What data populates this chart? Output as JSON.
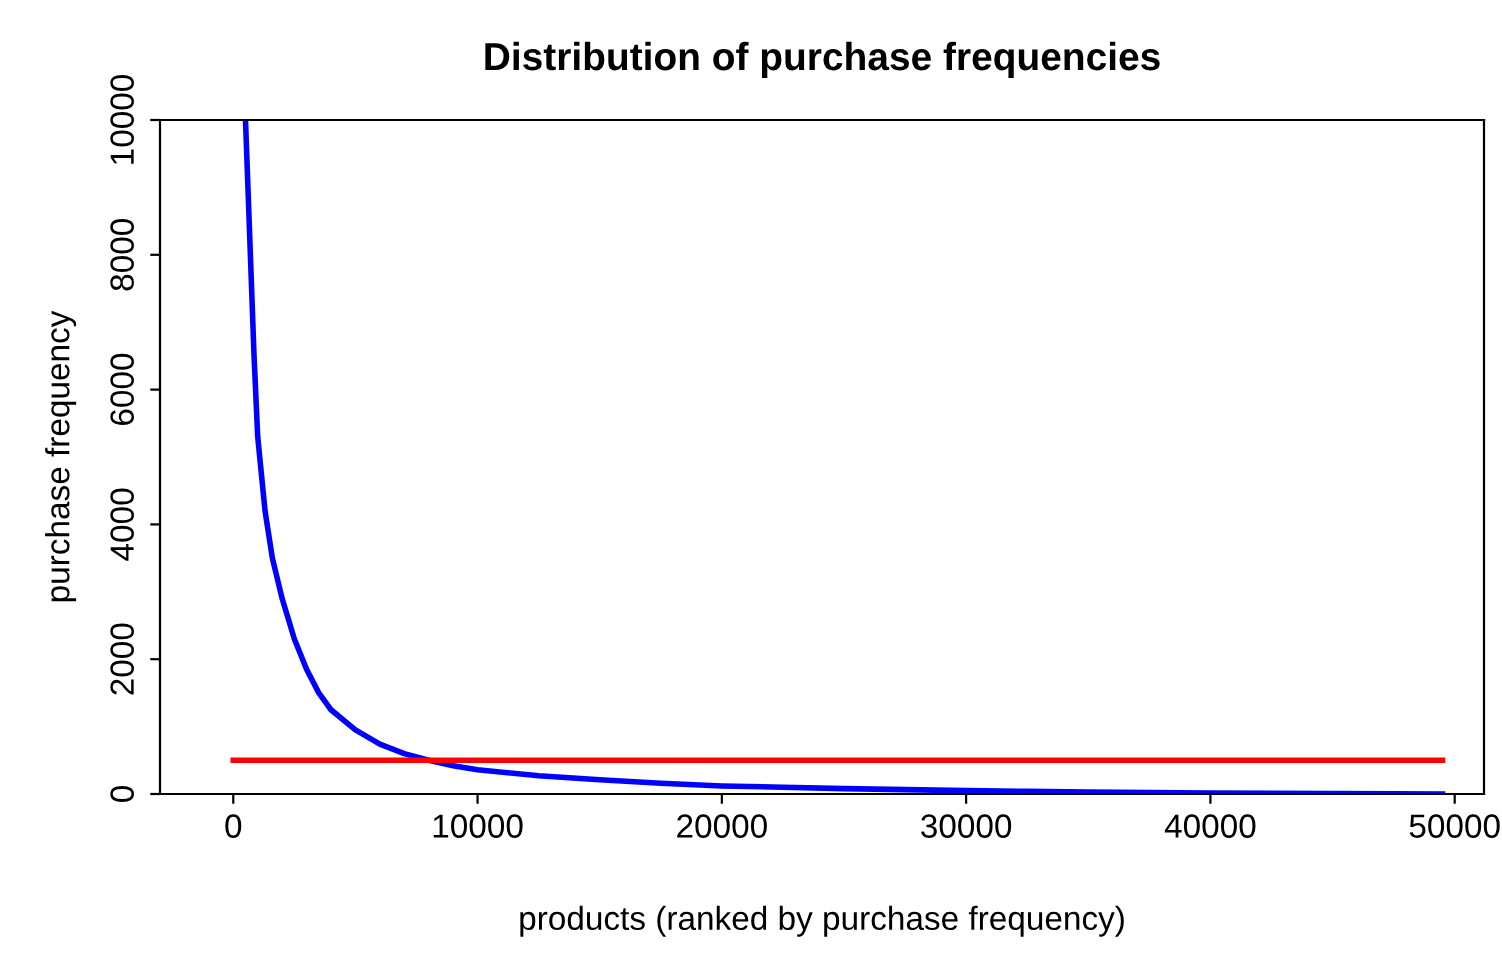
{
  "chart_data": {
    "type": "line",
    "title": "Distribution of purchase frequencies",
    "xlabel": "products (ranked by purchase frequency)",
    "ylabel": "purchase frequency",
    "series": [
      {
        "color": "#0000ff",
        "x": [
          500,
          600,
          700,
          850,
          1000,
          1300,
          1600,
          2000,
          2500,
          3000,
          3500,
          4000,
          5000,
          6000,
          7000,
          8000,
          9000,
          10000,
          12500,
          15000,
          17500,
          20000,
          22500,
          25000,
          27500,
          30000,
          32500,
          35000,
          37500,
          40000,
          42500,
          45000,
          47500,
          49500
        ],
        "values": [
          10000,
          9000,
          8000,
          6500,
          5300,
          4200,
          3500,
          2900,
          2300,
          1850,
          1500,
          1250,
          950,
          740,
          600,
          500,
          420,
          360,
          270,
          210,
          160,
          120,
          100,
          80,
          65,
          50,
          40,
          30,
          22,
          15,
          11,
          8,
          4,
          1
        ]
      },
      {
        "type": "line",
        "color": "#ff0000",
        "x": [
          0,
          49500
        ],
        "values": [
          500,
          500
        ]
      }
    ],
    "xlim": [
      -3000,
      51200
    ],
    "ylim": [
      0,
      10000
    ],
    "xticks": [
      0,
      10000,
      20000,
      30000,
      40000,
      50000
    ],
    "yticks": [
      0,
      2000,
      4000,
      6000,
      8000,
      10000
    ],
    "grid": false,
    "legend": false,
    "line_style": "solid"
  }
}
